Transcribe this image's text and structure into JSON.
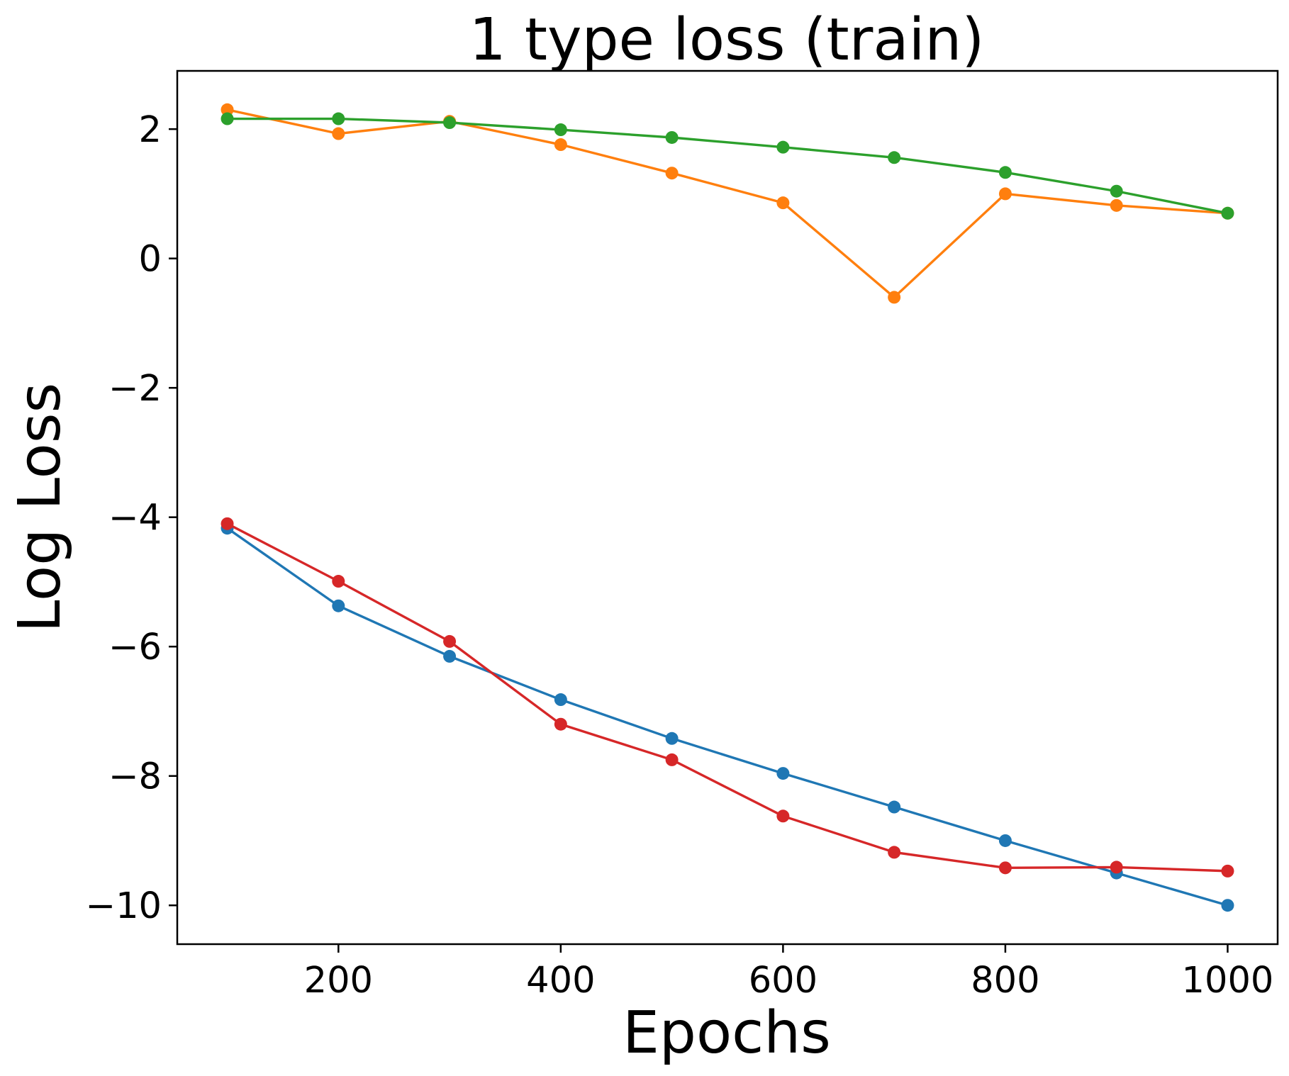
{
  "chart_data": {
    "type": "line",
    "title": "1 type loss (train)",
    "xlabel": "Epochs",
    "ylabel": "Log Loss",
    "x": [
      100,
      200,
      300,
      400,
      500,
      600,
      700,
      800,
      900,
      1000
    ],
    "xlim": [
      55,
      1045
    ],
    "ylim": [
      -10.6,
      2.9
    ],
    "xticks": [
      200,
      400,
      600,
      800,
      1000
    ],
    "yticks": [
      2,
      0,
      -2,
      -4,
      -6,
      -8,
      -10
    ],
    "grid": false,
    "legend": "none",
    "marker": "circle",
    "series": [
      {
        "color": "#1f77b4",
        "values": [
          -4.17,
          -5.37,
          -6.15,
          -6.82,
          -7.42,
          -7.96,
          -8.48,
          -9.0,
          -9.5,
          -10.0
        ]
      },
      {
        "color": "#ff7f0e",
        "values": [
          2.3,
          1.93,
          2.12,
          1.76,
          1.32,
          0.86,
          -0.6,
          1.0,
          0.82,
          0.7
        ]
      },
      {
        "color": "#2ca02c",
        "values": [
          2.16,
          2.16,
          2.1,
          1.99,
          1.87,
          1.72,
          1.56,
          1.33,
          1.04,
          0.7
        ]
      },
      {
        "color": "#d62728",
        "values": [
          -4.1,
          -4.99,
          -5.92,
          -7.2,
          -7.75,
          -8.62,
          -9.18,
          -9.42,
          -9.41,
          -9.47
        ]
      }
    ]
  }
}
